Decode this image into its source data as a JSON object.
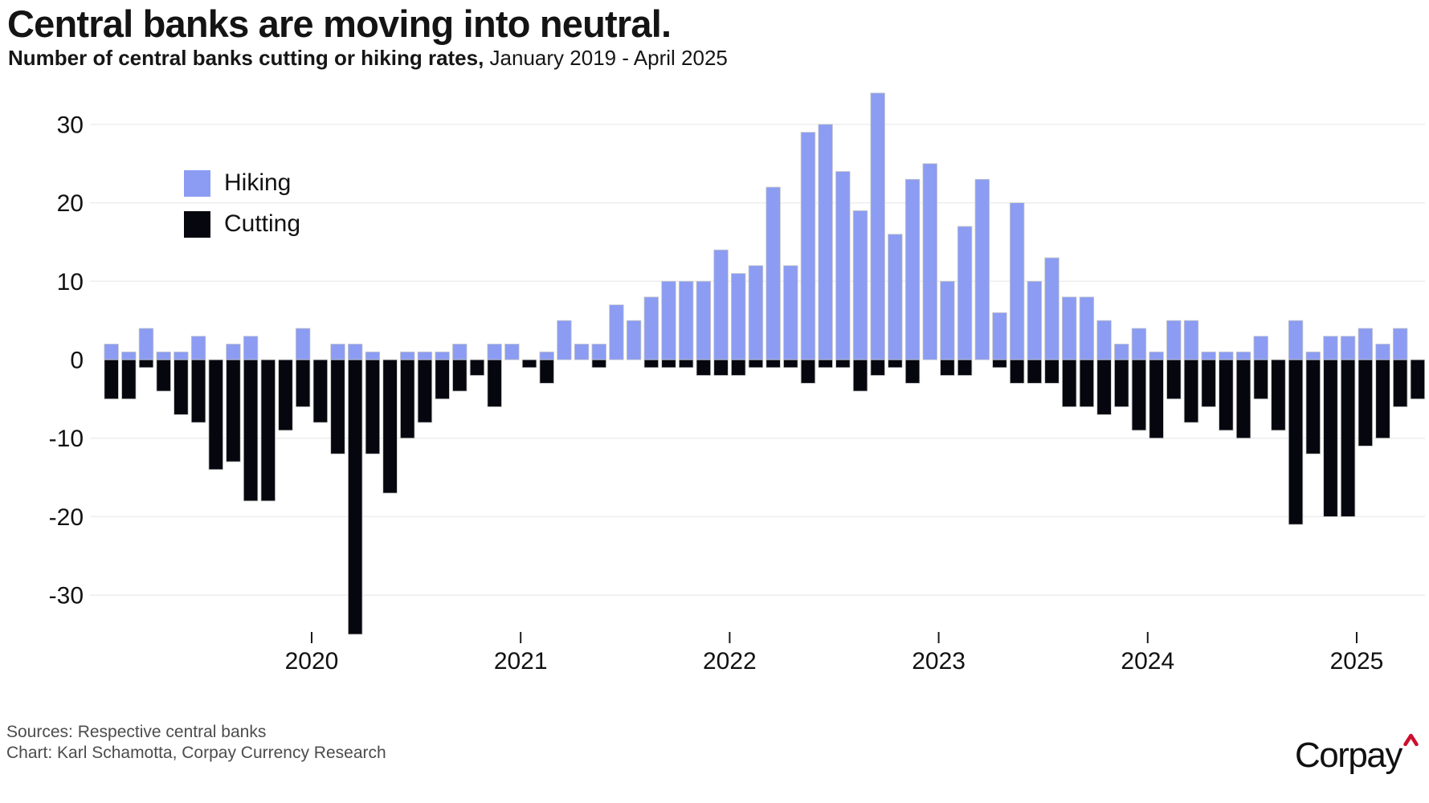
{
  "header": {
    "title": "Central banks are moving into neutral.",
    "subtitle_bold": "Number of central banks cutting or hiking rates,",
    "subtitle_regular": " January 2019 - April 2025"
  },
  "legend": {
    "hiking": "Hiking",
    "cutting": "Cutting"
  },
  "footer": {
    "line1": "Sources: Respective central banks",
    "line2": "Chart: Karl Schamotta, Corpay Currency Research"
  },
  "logo": {
    "text": "Corpay",
    "caret_color": "#ce0e2d"
  },
  "colors": {
    "hiking": "#8b9cf2",
    "cutting": "#06060f",
    "grid": "#ededed",
    "bar_stroke": "#c9c9c9",
    "axis_text": "#111111",
    "tick": "#1a1a1a"
  },
  "chart_data": {
    "type": "bar",
    "title": "Central banks are moving into neutral.",
    "subtitle": "Number of central banks cutting or hiking rates, January 2019 - April 2025",
    "xlabel": "",
    "ylabel": "Number of central banks",
    "ylim": [
      -36,
      35
    ],
    "yticks": [
      30,
      20,
      10,
      0,
      -10,
      -20,
      -30
    ],
    "grid": "horizontal",
    "legend_position": "top-left",
    "x": [
      "2019-01",
      "2019-02",
      "2019-03",
      "2019-04",
      "2019-05",
      "2019-06",
      "2019-07",
      "2019-08",
      "2019-09",
      "2019-10",
      "2019-11",
      "2019-12",
      "2020-01",
      "2020-02",
      "2020-03",
      "2020-04",
      "2020-05",
      "2020-06",
      "2020-07",
      "2020-08",
      "2020-09",
      "2020-10",
      "2020-11",
      "2020-12",
      "2021-01",
      "2021-02",
      "2021-03",
      "2021-04",
      "2021-05",
      "2021-06",
      "2021-07",
      "2021-08",
      "2021-09",
      "2021-10",
      "2021-11",
      "2021-12",
      "2022-01",
      "2022-02",
      "2022-03",
      "2022-04",
      "2022-05",
      "2022-06",
      "2022-07",
      "2022-08",
      "2022-09",
      "2022-10",
      "2022-11",
      "2022-12",
      "2023-01",
      "2023-02",
      "2023-03",
      "2023-04",
      "2023-05",
      "2023-06",
      "2023-07",
      "2023-08",
      "2023-09",
      "2023-10",
      "2023-11",
      "2023-12",
      "2024-01",
      "2024-02",
      "2024-03",
      "2024-04",
      "2024-05",
      "2024-06",
      "2024-07",
      "2024-08",
      "2024-09",
      "2024-10",
      "2024-11",
      "2024-12",
      "2025-01",
      "2025-02",
      "2025-03",
      "2025-04"
    ],
    "series": [
      {
        "name": "Hiking",
        "values": [
          2,
          1,
          4,
          1,
          1,
          3,
          0,
          2,
          3,
          0,
          0,
          4,
          0,
          2,
          2,
          1,
          0,
          1,
          1,
          1,
          2,
          0,
          2,
          2,
          0,
          1,
          5,
          2,
          2,
          7,
          5,
          8,
          10,
          10,
          10,
          14,
          11,
          12,
          22,
          12,
          29,
          30,
          24,
          19,
          34,
          16,
          23,
          25,
          10,
          17,
          23,
          6,
          20,
          10,
          13,
          8,
          8,
          5,
          2,
          4,
          1,
          5,
          5,
          1,
          1,
          1,
          3,
          0,
          5,
          1,
          3,
          3,
          4,
          2,
          4,
          0
        ]
      },
      {
        "name": "Cutting",
        "values": [
          -5,
          -5,
          -1,
          -4,
          -7,
          -8,
          -14,
          -13,
          -18,
          -18,
          -9,
          -6,
          -8,
          -12,
          -35,
          -12,
          -17,
          -10,
          -8,
          -5,
          -4,
          -2,
          -6,
          0,
          -1,
          -3,
          0,
          0,
          -1,
          0,
          0,
          -1,
          -1,
          -1,
          -2,
          -2,
          -2,
          -1,
          -1,
          -1,
          -3,
          -1,
          -1,
          -4,
          -2,
          -1,
          -3,
          0,
          -2,
          -2,
          0,
          -1,
          -3,
          -3,
          -3,
          -6,
          -6,
          -7,
          -6,
          -9,
          -10,
          -5,
          -8,
          -6,
          -9,
          -10,
          -5,
          -9,
          -21,
          -12,
          -20,
          -20,
          -11,
          -10,
          -6,
          -5
        ]
      }
    ],
    "year_ticks": [
      {
        "label": "2020",
        "month_index": 12
      },
      {
        "label": "2021",
        "month_index": 24
      },
      {
        "label": "2022",
        "month_index": 36
      },
      {
        "label": "2023",
        "month_index": 48
      },
      {
        "label": "2024",
        "month_index": 60
      },
      {
        "label": "2025",
        "month_index": 72
      }
    ]
  }
}
